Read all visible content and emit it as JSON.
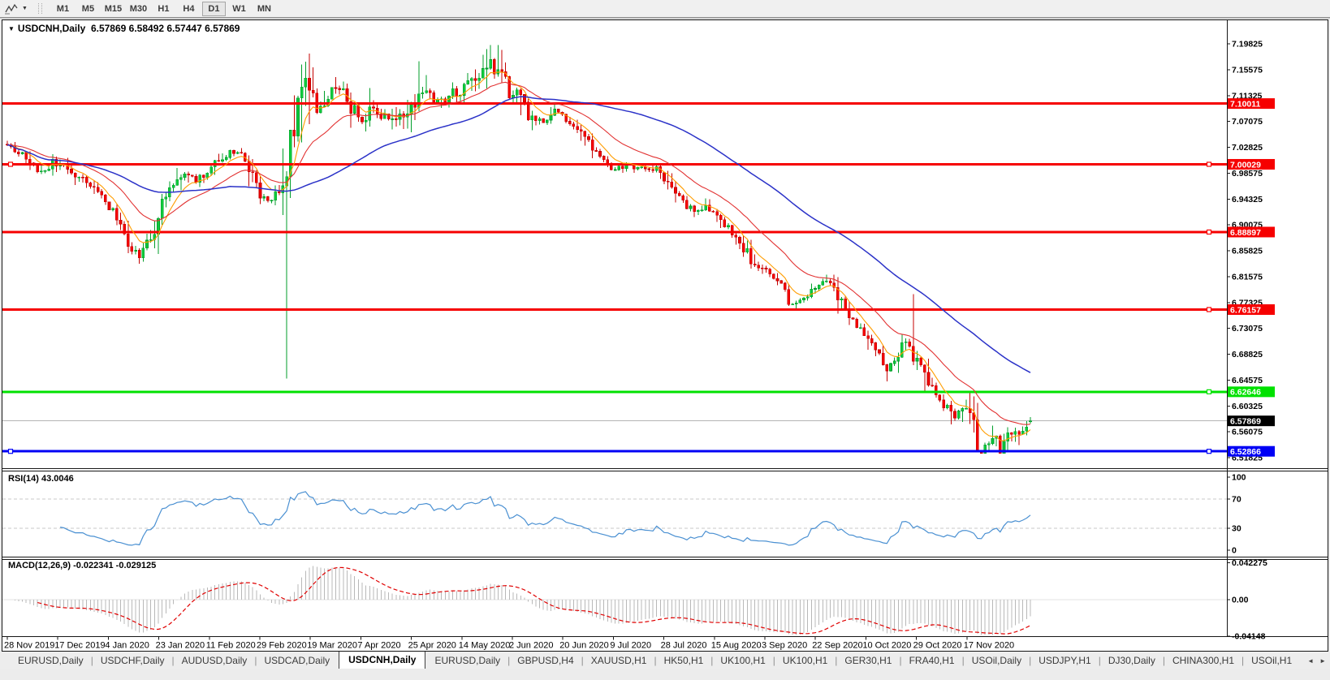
{
  "toolbar": {
    "caret": "▼",
    "timeframes": [
      "M1",
      "M5",
      "M15",
      "M30",
      "H1",
      "H4",
      "D1",
      "W1",
      "MN"
    ],
    "active_timeframe": "D1"
  },
  "chart": {
    "marker": "▼",
    "title": "USDCNH,Daily",
    "quote": "6.57869 6.58492 6.57447 6.57869"
  },
  "indicators_text": {
    "rsi": "RSI(14) 43.0046",
    "macd": "MACD(12,26,9) -0.022341 -0.029125"
  },
  "chart_data": {
    "type": "candlestick",
    "symbol": "USDCNH",
    "timeframe": "Daily",
    "title": "USDCNH,Daily",
    "ohlc_current": {
      "open": 6.57869,
      "high": 6.58492,
      "low": 6.57447,
      "close": 6.57869
    },
    "x_labels": [
      "28 Nov 2019",
      "17 Dec 2019",
      "4 Jan 2020",
      "23 Jan 2020",
      "11 Feb 2020",
      "29 Feb 2020",
      "19 Mar 2020",
      "7 Apr 2020",
      "25 Apr 2020",
      "14 May 2020",
      "2 Jun 2020",
      "20 Jun 2020",
      "9 Jul 2020",
      "28 Jul 2020",
      "15 Aug 2020",
      "3 Sep 2020",
      "22 Sep 2020",
      "10 Oct 2020",
      "29 Oct 2020",
      "17 Nov 2020"
    ],
    "y_ticks": [
      "7.19825",
      "7.15575",
      "7.11325",
      "7.07075",
      "7.02825",
      "6.98575",
      "6.94325",
      "6.90075",
      "6.85825",
      "6.81575",
      "6.77325",
      "6.73075",
      "6.68825",
      "6.64575",
      "6.60325",
      "6.56075",
      "6.51825"
    ],
    "y_range": [
      6.51825,
      7.19825
    ],
    "grid": "off",
    "up_color": "#0ecb3c",
    "down_color": "#f40000",
    "horizontal_lines": [
      {
        "label": "7.10011",
        "value": 7.10011,
        "color": "#f60000",
        "left_marker": false,
        "right_marker": false
      },
      {
        "label": "7.00029",
        "value": 7.00029,
        "color": "#f60000",
        "left_marker": true,
        "right_marker": true
      },
      {
        "label": "6.88897",
        "value": 6.88897,
        "color": "#f60000",
        "left_marker": false,
        "right_marker": true
      },
      {
        "label": "6.76157",
        "value": 6.76157,
        "color": "#f60000",
        "left_marker": false,
        "right_marker": true
      },
      {
        "label": "6.62646",
        "value": 6.62646,
        "color": "#00e100",
        "left_marker": false,
        "right_marker": true
      },
      {
        "label": "6.52866",
        "value": 6.52866,
        "color": "#0000f5",
        "left_marker": true,
        "right_marker": true
      }
    ],
    "current_price": {
      "label": "6.57869",
      "value": 6.57869,
      "box_color": "#000000",
      "line_color": "#b4b4b4"
    },
    "moving_averages": [
      {
        "name": "fast",
        "period": 7,
        "color": "#ff9d00"
      },
      {
        "name": "medium",
        "period": 21,
        "color": "#e23232"
      },
      {
        "name": "slow",
        "period": 60,
        "color": "#2b32c8"
      }
    ],
    "price_path": [
      [
        6,
        7.035
      ],
      [
        22,
        7.018
      ],
      [
        36,
        6.998
      ],
      [
        50,
        6.988
      ],
      [
        62,
        7.003
      ],
      [
        76,
        6.996
      ],
      [
        90,
        6.982
      ],
      [
        104,
        6.968
      ],
      [
        118,
        6.952
      ],
      [
        132,
        6.93
      ],
      [
        146,
        6.896
      ],
      [
        158,
        6.862
      ],
      [
        170,
        6.847
      ],
      [
        182,
        6.876
      ],
      [
        194,
        6.928
      ],
      [
        208,
        6.962
      ],
      [
        222,
        6.986
      ],
      [
        238,
        6.974
      ],
      [
        252,
        6.988
      ],
      [
        266,
        7.008
      ],
      [
        282,
        7.022
      ],
      [
        296,
        7.017
      ],
      [
        308,
        6.98
      ],
      [
        320,
        6.944
      ],
      [
        332,
        6.94
      ],
      [
        344,
        6.972
      ],
      [
        354,
        7.03
      ],
      [
        364,
        7.092
      ],
      [
        372,
        7.145
      ],
      [
        380,
        7.102
      ],
      [
        390,
        7.088
      ],
      [
        402,
        7.117
      ],
      [
        414,
        7.128
      ],
      [
        427,
        7.102
      ],
      [
        441,
        7.076
      ],
      [
        454,
        7.091
      ],
      [
        467,
        7.083
      ],
      [
        480,
        7.071
      ],
      [
        493,
        7.078
      ],
      [
        505,
        7.098
      ],
      [
        516,
        7.128
      ],
      [
        528,
        7.101
      ],
      [
        541,
        7.108
      ],
      [
        554,
        7.116
      ],
      [
        567,
        7.122
      ],
      [
        580,
        7.136
      ],
      [
        592,
        7.158
      ],
      [
        601,
        7.174
      ],
      [
        610,
        7.151
      ],
      [
        620,
        7.127
      ],
      [
        631,
        7.113
      ],
      [
        643,
        7.093
      ],
      [
        655,
        7.075
      ],
      [
        668,
        7.069
      ],
      [
        680,
        7.086
      ],
      [
        692,
        7.078
      ],
      [
        705,
        7.062
      ],
      [
        718,
        7.043
      ],
      [
        730,
        7.019
      ],
      [
        742,
        7.003
      ],
      [
        755,
        6.99
      ],
      [
        768,
        7.0
      ],
      [
        781,
        6.995
      ],
      [
        794,
        6.99
      ],
      [
        806,
        6.995
      ],
      [
        818,
        6.973
      ],
      [
        831,
        6.953
      ],
      [
        843,
        6.934
      ],
      [
        856,
        6.924
      ],
      [
        867,
        6.93
      ],
      [
        879,
        6.913
      ],
      [
        891,
        6.898
      ],
      [
        902,
        6.883
      ],
      [
        913,
        6.862
      ],
      [
        923,
        6.843
      ],
      [
        933,
        6.833
      ],
      [
        942,
        6.823
      ],
      [
        952,
        6.812
      ],
      [
        963,
        6.788
      ],
      [
        974,
        6.767
      ],
      [
        984,
        6.776
      ],
      [
        994,
        6.79
      ],
      [
        1004,
        6.8
      ],
      [
        1014,
        6.81
      ],
      [
        1023,
        6.8
      ],
      [
        1033,
        6.775
      ],
      [
        1043,
        6.753
      ],
      [
        1053,
        6.738
      ],
      [
        1065,
        6.718
      ],
      [
        1076,
        6.696
      ],
      [
        1086,
        6.675
      ],
      [
        1096,
        6.661
      ],
      [
        1106,
        6.698
      ],
      [
        1116,
        6.708
      ],
      [
        1127,
        6.675
      ],
      [
        1138,
        6.653
      ],
      [
        1150,
        6.623
      ],
      [
        1162,
        6.597
      ],
      [
        1175,
        6.582
      ],
      [
        1186,
        6.605
      ],
      [
        1197,
        6.558
      ],
      [
        1205,
        6.534
      ],
      [
        1212,
        6.547
      ],
      [
        1220,
        6.557
      ],
      [
        1228,
        6.536
      ],
      [
        1237,
        6.555
      ],
      [
        1246,
        6.572
      ],
      [
        1255,
        6.56
      ],
      [
        1261,
        6.57
      ],
      [
        1266,
        6.5787
      ]
    ],
    "special_wicks": [
      {
        "x": 170,
        "side": "low",
        "price": 6.838
      },
      {
        "x": 352,
        "side": "low",
        "price": 6.648
      },
      {
        "x": 601,
        "side": "high",
        "price": 7.1963
      },
      {
        "x": 1123,
        "side": "high",
        "price": 6.787
      },
      {
        "x": 1203,
        "side": "low",
        "price": 6.5287
      }
    ],
    "indicators": {
      "rsi": {
        "label": "RSI(14)",
        "value": "43.0046",
        "period": 14,
        "levels": [
          100,
          70,
          30,
          0
        ],
        "dashed_levels": [
          70,
          30
        ],
        "line_color": "#4a90d2"
      },
      "macd": {
        "label": "MACD(12,26,9)",
        "fast": 12,
        "slow": 26,
        "signal": 9,
        "values": [
          "-0.022341",
          "-0.029125"
        ],
        "axis_ticks": [
          {
            "label": "0.042275",
            "value": 0.042275
          },
          {
            "label": "0.00",
            "value": 0
          },
          {
            "label": "-0.04148",
            "value": -0.04148
          }
        ],
        "hist_color": "#b8b8b8",
        "signal_color": "#e00000"
      }
    }
  },
  "tabs": {
    "items": [
      "EURUSD,Daily",
      "USDCHF,Daily",
      "AUDUSD,Daily",
      "USDCAD,Daily",
      "USDCNH,Daily",
      "EURUSD,Daily",
      "GBPUSD,H4",
      "XAUUSD,H1",
      "HK50,H1",
      "UK100,H1",
      "UK100,H1",
      "GER30,H1",
      "FRA40,H1",
      "USOil,Daily",
      "USDJPY,H1",
      "DJ30,Daily",
      "CHINA300,H1",
      "USOil,H1"
    ],
    "active_index": 4,
    "separator": "|",
    "left_arrow": "◄",
    "right_arrow": "►"
  }
}
